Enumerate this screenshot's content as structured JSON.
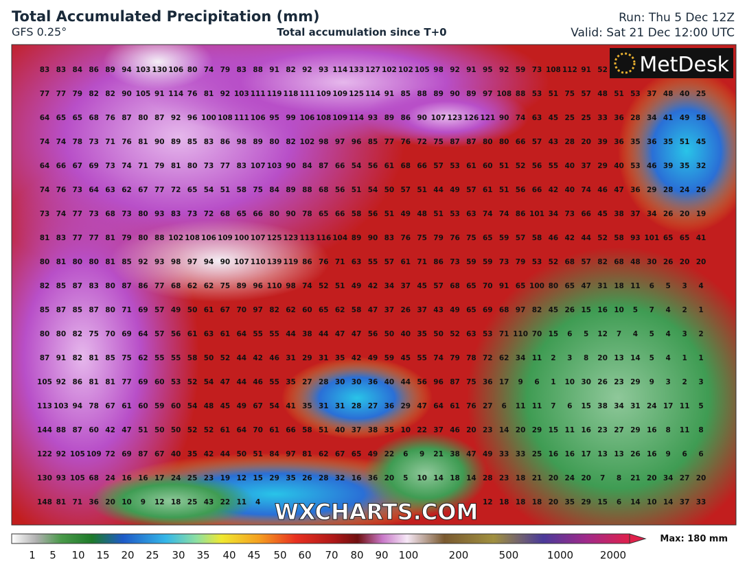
{
  "header": {
    "title": "Total Accumulated Precipitation (mm)",
    "model": "GFS 0.25°",
    "subtitle": "Total accumulation since T+0",
    "run": "Run: Thu 5 Dec 12Z",
    "valid": "Valid: Sat 21 Dec 12:00 UTC"
  },
  "logo": "MetDesk",
  "watermark": "WXCHARTS.COM",
  "map": {
    "rows": [
      [
        83,
        83,
        84,
        86,
        89,
        94,
        103,
        130,
        106,
        80,
        74,
        79,
        83,
        88,
        91,
        82,
        92,
        93,
        114,
        133,
        127,
        102,
        102,
        105,
        98,
        92,
        91,
        95,
        92,
        59,
        73,
        108,
        112,
        91,
        52
      ],
      [
        77,
        77,
        79,
        82,
        82,
        90,
        105,
        91,
        114,
        76,
        81,
        92,
        103,
        111,
        119,
        118,
        111,
        109,
        109,
        125,
        114,
        91,
        85,
        88,
        89,
        90,
        89,
        97,
        108,
        88,
        53,
        51,
        75,
        57,
        48,
        51,
        53,
        37,
        48,
        40,
        25
      ],
      [
        64,
        65,
        65,
        68,
        76,
        87,
        80,
        87,
        92,
        96,
        100,
        108,
        111,
        106,
        95,
        99,
        106,
        108,
        109,
        114,
        93,
        89,
        86,
        90,
        107,
        123,
        126,
        121,
        90,
        74,
        63,
        45,
        25,
        25,
        33,
        36,
        28,
        34,
        41,
        49,
        58
      ],
      [
        74,
        74,
        78,
        73,
        71,
        76,
        81,
        90,
        89,
        85,
        83,
        86,
        98,
        89,
        80,
        82,
        102,
        98,
        97,
        96,
        85,
        77,
        76,
        72,
        75,
        87,
        87,
        80,
        80,
        66,
        57,
        43,
        28,
        20,
        39,
        36,
        35,
        36,
        35,
        51,
        45
      ],
      [
        64,
        66,
        67,
        69,
        73,
        74,
        71,
        79,
        81,
        80,
        73,
        77,
        83,
        107,
        103,
        90,
        84,
        87,
        66,
        54,
        56,
        61,
        68,
        66,
        57,
        53,
        61,
        60,
        51,
        52,
        56,
        55,
        40,
        37,
        29,
        40,
        53,
        46,
        39,
        35,
        32
      ],
      [
        74,
        76,
        73,
        64,
        63,
        62,
        67,
        77,
        72,
        65,
        54,
        51,
        58,
        75,
        84,
        89,
        88,
        68,
        56,
        51,
        54,
        50,
        57,
        51,
        44,
        49,
        57,
        61,
        51,
        56,
        66,
        42,
        40,
        74,
        46,
        47,
        36,
        29,
        28,
        24,
        26
      ],
      [
        73,
        74,
        77,
        73,
        68,
        73,
        80,
        93,
        83,
        73,
        72,
        68,
        65,
        66,
        80,
        90,
        78,
        65,
        66,
        58,
        56,
        51,
        49,
        48,
        51,
        53,
        63,
        74,
        74,
        86,
        101,
        34,
        73,
        66,
        45,
        38,
        37,
        34,
        26,
        20,
        19
      ],
      [
        81,
        83,
        77,
        77,
        81,
        79,
        80,
        88,
        102,
        108,
        106,
        109,
        100,
        107,
        125,
        123,
        113,
        116,
        104,
        89,
        90,
        83,
        76,
        75,
        79,
        76,
        75,
        65,
        59,
        57,
        58,
        46,
        42,
        44,
        52,
        58,
        93,
        101,
        65,
        65,
        41
      ],
      [
        80,
        81,
        80,
        80,
        81,
        85,
        92,
        93,
        98,
        97,
        94,
        90,
        107,
        110,
        139,
        119,
        86,
        76,
        71,
        63,
        55,
        57,
        61,
        71,
        86,
        73,
        59,
        59,
        73,
        79,
        53,
        52,
        68,
        57,
        82,
        68,
        48,
        30,
        26,
        20,
        20
      ],
      [
        82,
        85,
        87,
        83,
        80,
        87,
        86,
        77,
        68,
        62,
        62,
        75,
        89,
        96,
        110,
        98,
        74,
        52,
        51,
        49,
        42,
        34,
        37,
        45,
        57,
        68,
        65,
        70,
        91,
        65,
        100,
        80,
        65,
        47,
        31,
        18,
        11,
        6,
        5,
        3,
        4
      ],
      [
        85,
        87,
        85,
        87,
        80,
        71,
        69,
        57,
        49,
        50,
        61,
        67,
        70,
        97,
        82,
        62,
        60,
        65,
        62,
        58,
        47,
        37,
        26,
        37,
        43,
        49,
        65,
        69,
        68,
        97,
        82,
        45,
        26,
        15,
        16,
        10,
        5,
        7,
        4,
        2,
        1
      ],
      [
        80,
        80,
        82,
        75,
        70,
        69,
        64,
        57,
        56,
        61,
        63,
        61,
        64,
        55,
        55,
        44,
        38,
        44,
        47,
        47,
        56,
        50,
        40,
        35,
        50,
        52,
        63,
        53,
        71,
        110,
        70,
        15,
        6,
        5,
        12,
        7,
        4,
        5,
        4,
        3,
        2
      ],
      [
        87,
        91,
        82,
        81,
        85,
        75,
        62,
        55,
        55,
        58,
        50,
        52,
        44,
        42,
        46,
        31,
        29,
        31,
        35,
        42,
        49,
        59,
        45,
        55,
        74,
        79,
        78,
        72,
        62,
        34,
        11,
        2,
        3,
        8,
        20,
        13,
        14,
        5,
        4,
        1,
        1
      ],
      [
        105,
        92,
        86,
        81,
        81,
        77,
        69,
        60,
        53,
        52,
        54,
        47,
        44,
        46,
        55,
        35,
        27,
        28,
        30,
        30,
        36,
        40,
        44,
        56,
        96,
        87,
        75,
        36,
        17,
        9,
        6,
        1,
        10,
        30,
        26,
        23,
        29,
        9,
        3,
        2,
        3
      ],
      [
        113,
        103,
        94,
        78,
        67,
        61,
        60,
        59,
        60,
        54,
        48,
        45,
        49,
        67,
        54,
        41,
        35,
        31,
        31,
        28,
        27,
        36,
        29,
        47,
        64,
        61,
        76,
        27,
        6,
        11,
        11,
        7,
        6,
        15,
        38,
        34,
        31,
        24,
        17,
        11,
        5
      ],
      [
        144,
        88,
        87,
        60,
        42,
        47,
        51,
        50,
        50,
        52,
        52,
        61,
        64,
        70,
        61,
        66,
        58,
        51,
        40,
        37,
        38,
        35,
        10,
        22,
        37,
        46,
        20,
        23,
        14,
        20,
        29,
        15,
        11,
        16,
        23,
        27,
        29,
        16,
        8,
        11,
        8
      ],
      [
        122,
        92,
        105,
        109,
        72,
        69,
        87,
        67,
        40,
        35,
        42,
        44,
        50,
        51,
        84,
        97,
        81,
        62,
        67,
        65,
        49,
        22,
        6,
        9,
        21,
        38,
        47,
        49,
        33,
        33,
        25,
        16,
        16,
        17,
        13,
        13,
        26,
        16,
        9,
        6,
        6
      ],
      [
        130,
        93,
        105,
        68,
        24,
        16,
        16,
        17,
        24,
        25,
        23,
        19,
        12,
        15,
        29,
        35,
        26,
        28,
        32,
        16,
        36,
        20,
        5,
        10,
        14,
        18,
        14,
        28,
        23,
        18,
        21,
        20,
        24,
        20,
        7,
        8,
        21,
        20,
        34,
        27,
        20
      ],
      [
        148,
        81,
        71,
        36,
        20,
        10,
        9,
        12,
        18,
        25,
        43,
        22,
        11,
        4,
        null,
        null,
        null,
        null,
        null,
        null,
        null,
        null,
        null,
        null,
        null,
        null,
        null,
        12,
        18,
        18,
        18,
        20,
        35,
        29,
        15,
        6,
        14,
        10,
        14,
        37,
        33
      ]
    ]
  },
  "legend": {
    "labels": [
      1,
      5,
      10,
      15,
      20,
      25,
      30,
      35,
      40,
      45,
      50,
      60,
      70,
      80,
      90,
      100,
      200,
      500,
      1000,
      2000
    ],
    "max": "Max: 180 mm"
  }
}
